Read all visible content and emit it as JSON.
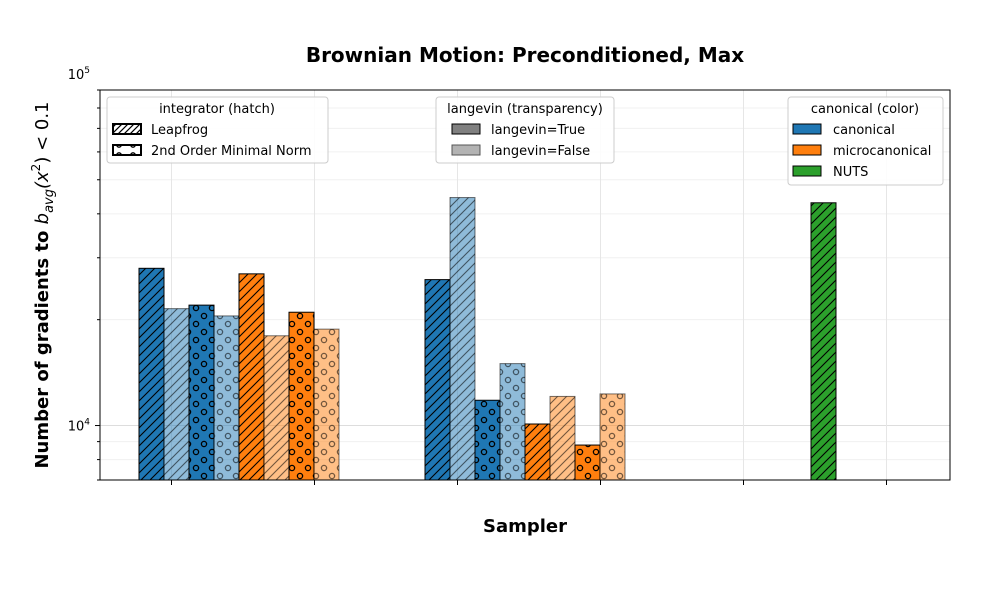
{
  "chart_data": {
    "type": "bar",
    "title": "Brownian Motion: Preconditioned, Max",
    "xlabel": "Sampler",
    "ylabel_parts": [
      "Number of gradients to ",
      "b",
      "avg",
      "(x",
      "2",
      ") < 0.1"
    ],
    "yscale": "log",
    "ylim": [
      7000,
      90000
    ],
    "y_ticks": [
      {
        "value": 10000,
        "base": "10",
        "exp": "4"
      },
      {
        "value": 100000,
        "base": "10",
        "exp": "5"
      }
    ],
    "grid": true,
    "colors": {
      "canonical": "#1f77b4",
      "microcanonical": "#ff7f0e",
      "NUTS": "#2ca02c"
    },
    "legends": [
      {
        "title": "integrator (hatch)",
        "placement": "upper-left",
        "entries": [
          {
            "label": "Leapfrog",
            "kind": "hatch-lines"
          },
          {
            "label": "2nd Order Minimal Norm",
            "kind": "hatch-circles"
          }
        ]
      },
      {
        "title": "langevin (transparency)",
        "placement": "upper-center",
        "entries": [
          {
            "label": "langevin=True",
            "kind": "alpha-true"
          },
          {
            "label": "langevin=False",
            "kind": "alpha-false"
          }
        ]
      },
      {
        "title": "canonical (color)",
        "placement": "upper-right",
        "entries": [
          {
            "label": "canonical",
            "kind": "color",
            "color": "#1f77b4"
          },
          {
            "label": "microcanonical",
            "kind": "color",
            "color": "#ff7f0e"
          },
          {
            "label": "NUTS",
            "kind": "color",
            "color": "#2ca02c"
          }
        ]
      }
    ],
    "groups": [
      {
        "bars": [
          {
            "canonical": "canonical",
            "integrator": "Leapfrog",
            "langevin": true,
            "value": 28000
          },
          {
            "canonical": "canonical",
            "integrator": "Leapfrog",
            "langevin": false,
            "value": 21500
          },
          {
            "canonical": "canonical",
            "integrator": "2nd Order Minimal Norm",
            "langevin": true,
            "value": 22000
          },
          {
            "canonical": "canonical",
            "integrator": "2nd Order Minimal Norm",
            "langevin": false,
            "value": 20500
          },
          {
            "canonical": "microcanonical",
            "integrator": "Leapfrog",
            "langevin": true,
            "value": 27000
          },
          {
            "canonical": "microcanonical",
            "integrator": "Leapfrog",
            "langevin": false,
            "value": 18000
          },
          {
            "canonical": "microcanonical",
            "integrator": "2nd Order Minimal Norm",
            "langevin": true,
            "value": 21000
          },
          {
            "canonical": "microcanonical",
            "integrator": "2nd Order Minimal Norm",
            "langevin": false,
            "value": 18800
          }
        ]
      },
      {
        "bars": [
          {
            "canonical": "canonical",
            "integrator": "Leapfrog",
            "langevin": true,
            "value": 26000
          },
          {
            "canonical": "canonical",
            "integrator": "Leapfrog",
            "langevin": false,
            "value": 44500
          },
          {
            "canonical": "canonical",
            "integrator": "2nd Order Minimal Norm",
            "langevin": true,
            "value": 11800
          },
          {
            "canonical": "canonical",
            "integrator": "2nd Order Minimal Norm",
            "langevin": false,
            "value": 15000
          },
          {
            "canonical": "microcanonical",
            "integrator": "Leapfrog",
            "langevin": true,
            "value": 10100
          },
          {
            "canonical": "microcanonical",
            "integrator": "Leapfrog",
            "langevin": false,
            "value": 12100
          },
          {
            "canonical": "microcanonical",
            "integrator": "2nd Order Minimal Norm",
            "langevin": true,
            "value": 8800
          },
          {
            "canonical": "microcanonical",
            "integrator": "2nd Order Minimal Norm",
            "langevin": false,
            "value": 12300
          }
        ]
      },
      {
        "bars": [
          {
            "canonical": "NUTS",
            "integrator": "Leapfrog",
            "langevin": true,
            "value": 43000
          }
        ]
      }
    ]
  }
}
